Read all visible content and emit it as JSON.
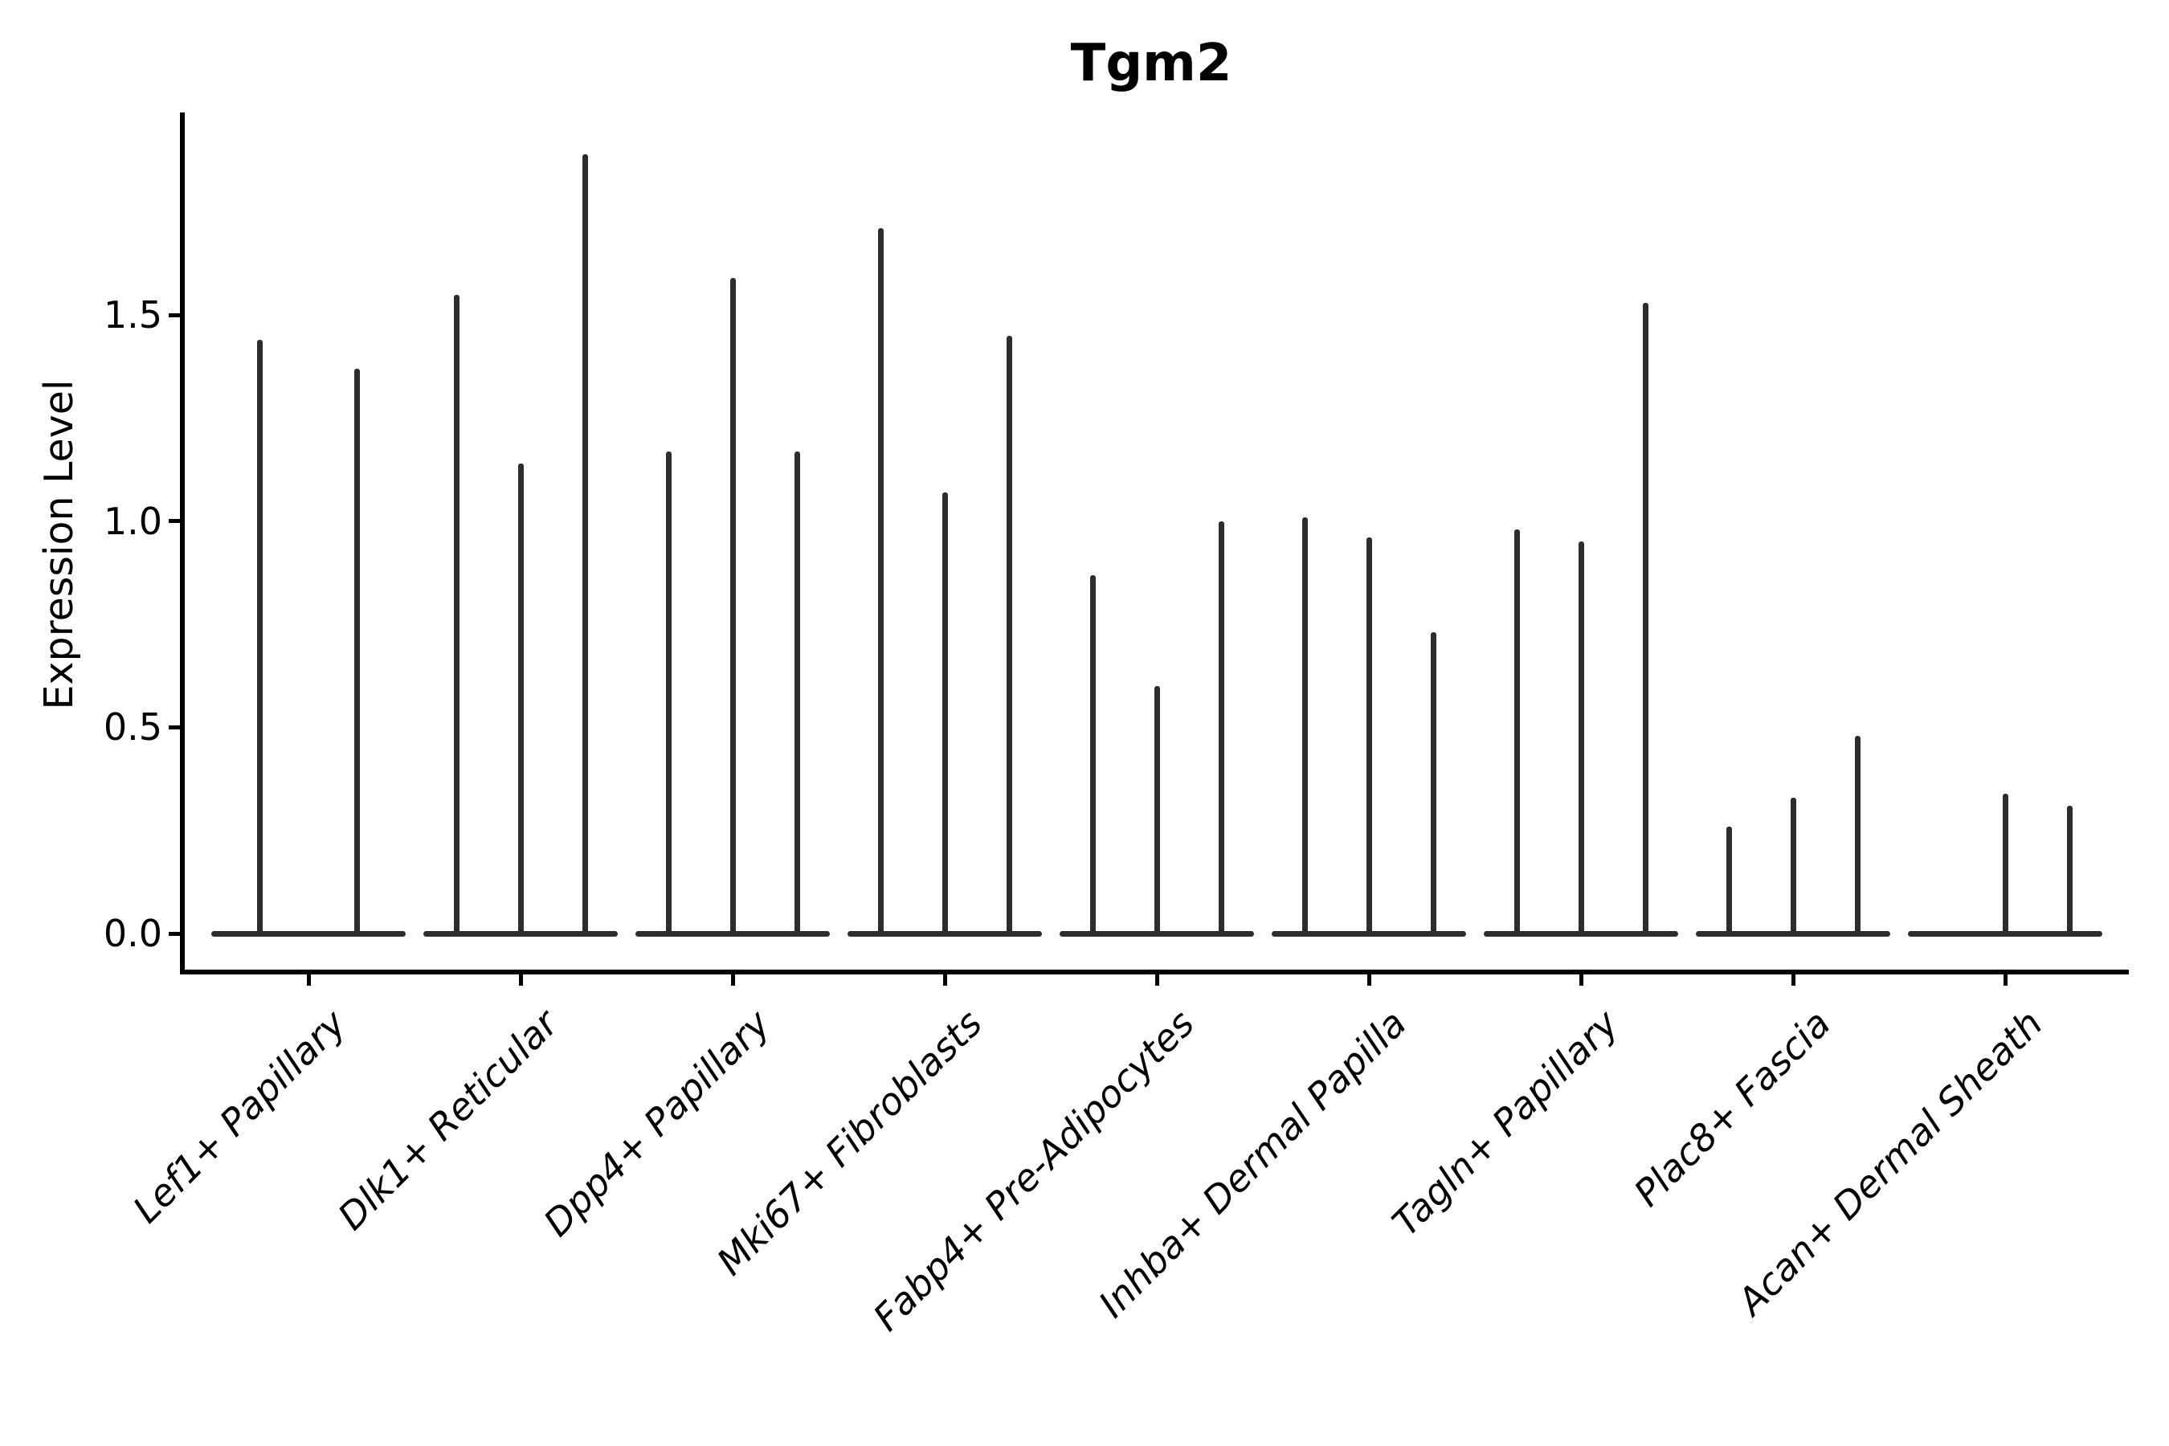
{
  "chart_data": {
    "type": "violin",
    "title": "Tgm2",
    "ylabel": "Expression Level",
    "xlabel": "",
    "ytick_labels": [
      "0.0",
      "0.5",
      "1.0",
      "1.5"
    ],
    "ytick_values": [
      0.0,
      0.5,
      1.0,
      1.5
    ],
    "ylim": [
      -0.09,
      1.99
    ],
    "grid": false,
    "legend": "none",
    "categories": [
      "Lef1+ Papillary",
      "Dlk1+ Reticular",
      "Dpp4+ Papillary",
      "Mki67+ Fibroblasts",
      "Fabp4+ Pre-Adipocytes",
      "Inhba+ Dermal Papilla",
      "Tagln+ Papillary",
      "Plac8+ Fascia",
      "Acan+ Dermal Sheath"
    ],
    "violins": [
      {
        "category": "Lef1+ Papillary",
        "spike_maxima": [
          1.44,
          1.37
        ]
      },
      {
        "category": "Dlk1+ Reticular",
        "spike_maxima": [
          1.55,
          1.14,
          1.89
        ]
      },
      {
        "category": "Dpp4+ Papillary",
        "spike_maxima": [
          1.17,
          1.59,
          1.17
        ]
      },
      {
        "category": "Mki67+ Fibroblasts",
        "spike_maxima": [
          1.71,
          1.07,
          1.45
        ]
      },
      {
        "category": "Fabp4+ Pre-Adipocytes",
        "spike_maxima": [
          0.87,
          0.6,
          1.0
        ]
      },
      {
        "category": "Inhba+ Dermal Papilla",
        "spike_maxima": [
          1.01,
          0.96,
          0.73
        ]
      },
      {
        "category": "Tagln+ Papillary",
        "spike_maxima": [
          0.98,
          0.95,
          1.53
        ]
      },
      {
        "category": "Plac8+ Fascia",
        "spike_maxima": [
          0.26,
          0.33,
          0.48
        ]
      },
      {
        "category": "Acan+ Dermal Sheath",
        "spike_maxima": [
          0,
          0.34,
          0.31
        ]
      }
    ],
    "colors": {
      "violin": "#2d2d2d",
      "axis": "#000000",
      "text": "#000000",
      "background": "#ffffff"
    }
  }
}
